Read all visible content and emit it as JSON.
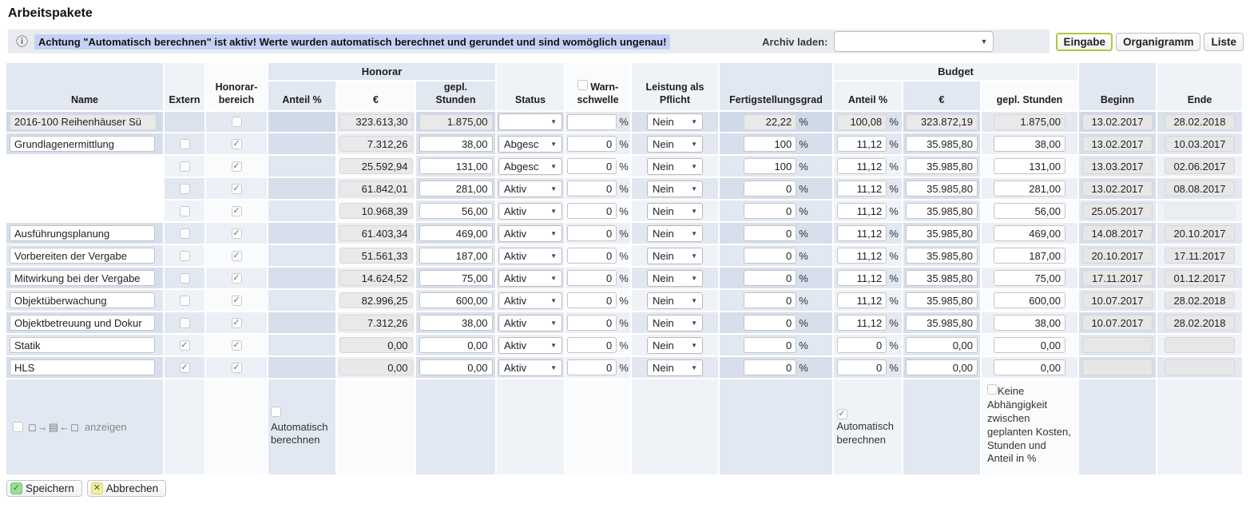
{
  "page": {
    "title": "Arbeitspakete"
  },
  "banner": {
    "info_icon": "ⓘ",
    "message": "Achtung \"Automatisch berechnen\" ist aktiv! Werte wurden automatisch berechnet und gerundet und sind womöglich ungenau!",
    "archive_label": "Archiv laden:",
    "archive_selected": ""
  },
  "view_switch": {
    "buttons": [
      {
        "label": "Eingabe",
        "active": true
      },
      {
        "label": "Organigramm",
        "active": false
      },
      {
        "label": "Liste",
        "active": false
      }
    ]
  },
  "table": {
    "groups": {
      "honorar": "Honorar",
      "budget": "Budget"
    },
    "columns": {
      "name": "Name",
      "extern": "Extern",
      "bereich": "Honorar-\nbereich",
      "anteil": "Anteil %",
      "euro": "€",
      "stunden": "gepl.\nStunden",
      "status": "Status",
      "warn": "Warn-\nschwelle",
      "leistung": "Leistung als\nPflicht",
      "fertig": "Fertigstellungsgrad",
      "b_anteil": "Anteil %",
      "b_euro": "€",
      "b_stunden": "gepl. Stunden",
      "beginn": "Beginn",
      "ende": "Ende"
    },
    "percent_sign": "%",
    "project_row": {
      "name": "2016-100 Reihenhäuser Sü",
      "bereich_checked": false,
      "euro": "323.613,30",
      "stunden": "1.875,00",
      "status": "",
      "warn": "",
      "leistung": "Nein",
      "fertig": "22,22",
      "b_anteil": "100,08",
      "b_euro": "323.872,19",
      "b_stunden": "1.875,00",
      "beginn": "13.02.2017",
      "ende": "28.02.2018"
    },
    "rows": [
      {
        "has_name": true,
        "name": "Grundlagenermittlung",
        "extern": false,
        "bereich": true,
        "euro": "7.312,26",
        "stunden": "38,00",
        "status": "Abgesc",
        "warn": "0",
        "leistung": "Nein",
        "fertig": "100",
        "b_anteil": "11,12",
        "b_euro": "35.985,80",
        "b_stunden": "38,00",
        "beginn": "13.02.2017",
        "ende": "10.03.2017",
        "ende_faint": false,
        "dates_empty": false
      },
      {
        "has_name": false,
        "name": "",
        "extern": false,
        "bereich": true,
        "euro": "25.592,94",
        "stunden": "131,00",
        "status": "Abgesc",
        "warn": "0",
        "leistung": "Nein",
        "fertig": "100",
        "b_anteil": "11,12",
        "b_euro": "35.985,80",
        "b_stunden": "131,00",
        "beginn": "13.03.2017",
        "ende": "02.06.2017",
        "ende_faint": false,
        "dates_empty": false
      },
      {
        "has_name": false,
        "name": "",
        "extern": false,
        "bereich": true,
        "euro": "61.842,01",
        "stunden": "281,00",
        "status": "Aktiv",
        "warn": "0",
        "leistung": "Nein",
        "fertig": "0",
        "b_anteil": "11,12",
        "b_euro": "35.985,80",
        "b_stunden": "281,00",
        "beginn": "13.02.2017",
        "ende": "08.08.2017",
        "ende_faint": false,
        "dates_empty": false
      },
      {
        "has_name": false,
        "name": "",
        "extern": false,
        "bereich": true,
        "euro": "10.968,39",
        "stunden": "56,00",
        "status": "Aktiv",
        "warn": "0",
        "leistung": "Nein",
        "fertig": "0",
        "b_anteil": "11,12",
        "b_euro": "35.985,80",
        "b_stunden": "56,00",
        "beginn": "25.05.2017",
        "ende": "",
        "ende_faint": true,
        "dates_empty": false
      },
      {
        "has_name": true,
        "name": "Ausführungsplanung",
        "extern": false,
        "bereich": true,
        "euro": "61.403,34",
        "stunden": "469,00",
        "status": "Aktiv",
        "warn": "0",
        "leistung": "Nein",
        "fertig": "0",
        "b_anteil": "11,12",
        "b_euro": "35.985,80",
        "b_stunden": "469,00",
        "beginn": "14.08.2017",
        "ende": "20.10.2017",
        "ende_faint": false,
        "dates_empty": false
      },
      {
        "has_name": true,
        "name": "Vorbereiten der Vergabe",
        "extern": false,
        "bereich": true,
        "euro": "51.561,33",
        "stunden": "187,00",
        "status": "Aktiv",
        "warn": "0",
        "leistung": "Nein",
        "fertig": "0",
        "b_anteil": "11,12",
        "b_euro": "35.985,80",
        "b_stunden": "187,00",
        "beginn": "20.10.2017",
        "ende": "17.11.2017",
        "ende_faint": false,
        "dates_empty": false
      },
      {
        "has_name": true,
        "name": "Mitwirkung bei der Vergabe",
        "extern": false,
        "bereich": true,
        "euro": "14.624,52",
        "stunden": "75,00",
        "status": "Aktiv",
        "warn": "0",
        "leistung": "Nein",
        "fertig": "0",
        "b_anteil": "11,12",
        "b_euro": "35.985,80",
        "b_stunden": "75,00",
        "beginn": "17.11.2017",
        "ende": "01.12.2017",
        "ende_faint": false,
        "dates_empty": false
      },
      {
        "has_name": true,
        "name": "Objektüberwachung",
        "extern": false,
        "bereich": true,
        "euro": "82.996,25",
        "stunden": "600,00",
        "status": "Aktiv",
        "warn": "0",
        "leistung": "Nein",
        "fertig": "0",
        "b_anteil": "11,12",
        "b_euro": "35.985,80",
        "b_stunden": "600,00",
        "beginn": "10.07.2017",
        "ende": "28.02.2018",
        "ende_faint": false,
        "dates_empty": false
      },
      {
        "has_name": true,
        "name": "Objektbetreuung und Dokur",
        "extern": false,
        "bereich": true,
        "euro": "7.312,26",
        "stunden": "38,00",
        "status": "Aktiv",
        "warn": "0",
        "leistung": "Nein",
        "fertig": "0",
        "b_anteil": "11,12",
        "b_euro": "35.985,80",
        "b_stunden": "38,00",
        "beginn": "10.07.2017",
        "ende": "28.02.2018",
        "ende_faint": false,
        "dates_empty": false
      },
      {
        "has_name": true,
        "name": "Statik",
        "extern": true,
        "bereich": true,
        "euro": "0,00",
        "stunden": "0,00",
        "status": "Aktiv",
        "warn": "0",
        "leistung": "Nein",
        "fertig": "0",
        "b_anteil": "0",
        "b_euro": "0,00",
        "b_stunden": "0,00",
        "beginn": "",
        "ende": "",
        "ende_faint": false,
        "dates_empty": true
      },
      {
        "has_name": true,
        "name": "HLS",
        "extern": true,
        "bereich": true,
        "euro": "0,00",
        "stunden": "0,00",
        "status": "Aktiv",
        "warn": "0",
        "leistung": "Nein",
        "fertig": "0",
        "b_anteil": "0",
        "b_euro": "0,00",
        "b_stunden": "0,00",
        "beginn": "",
        "ende": "",
        "ende_faint": false,
        "dates_empty": true
      }
    ],
    "footer": {
      "show_toggle": {
        "checked": false,
        "glyphs": "◻→▤←◻",
        "label": "anzeigen"
      },
      "honorar_auto": {
        "checked": false,
        "label": "Automatisch berechnen"
      },
      "budget_auto": {
        "checked": true,
        "label": "Automatisch berechnen"
      },
      "no_dependency": {
        "checked": false,
        "label": "Keine Abhängigkeit zwischen geplanten Kosten, Stunden und Anteil in %"
      }
    }
  },
  "actions": {
    "save": "Speichern",
    "cancel": "Abbrechen"
  }
}
